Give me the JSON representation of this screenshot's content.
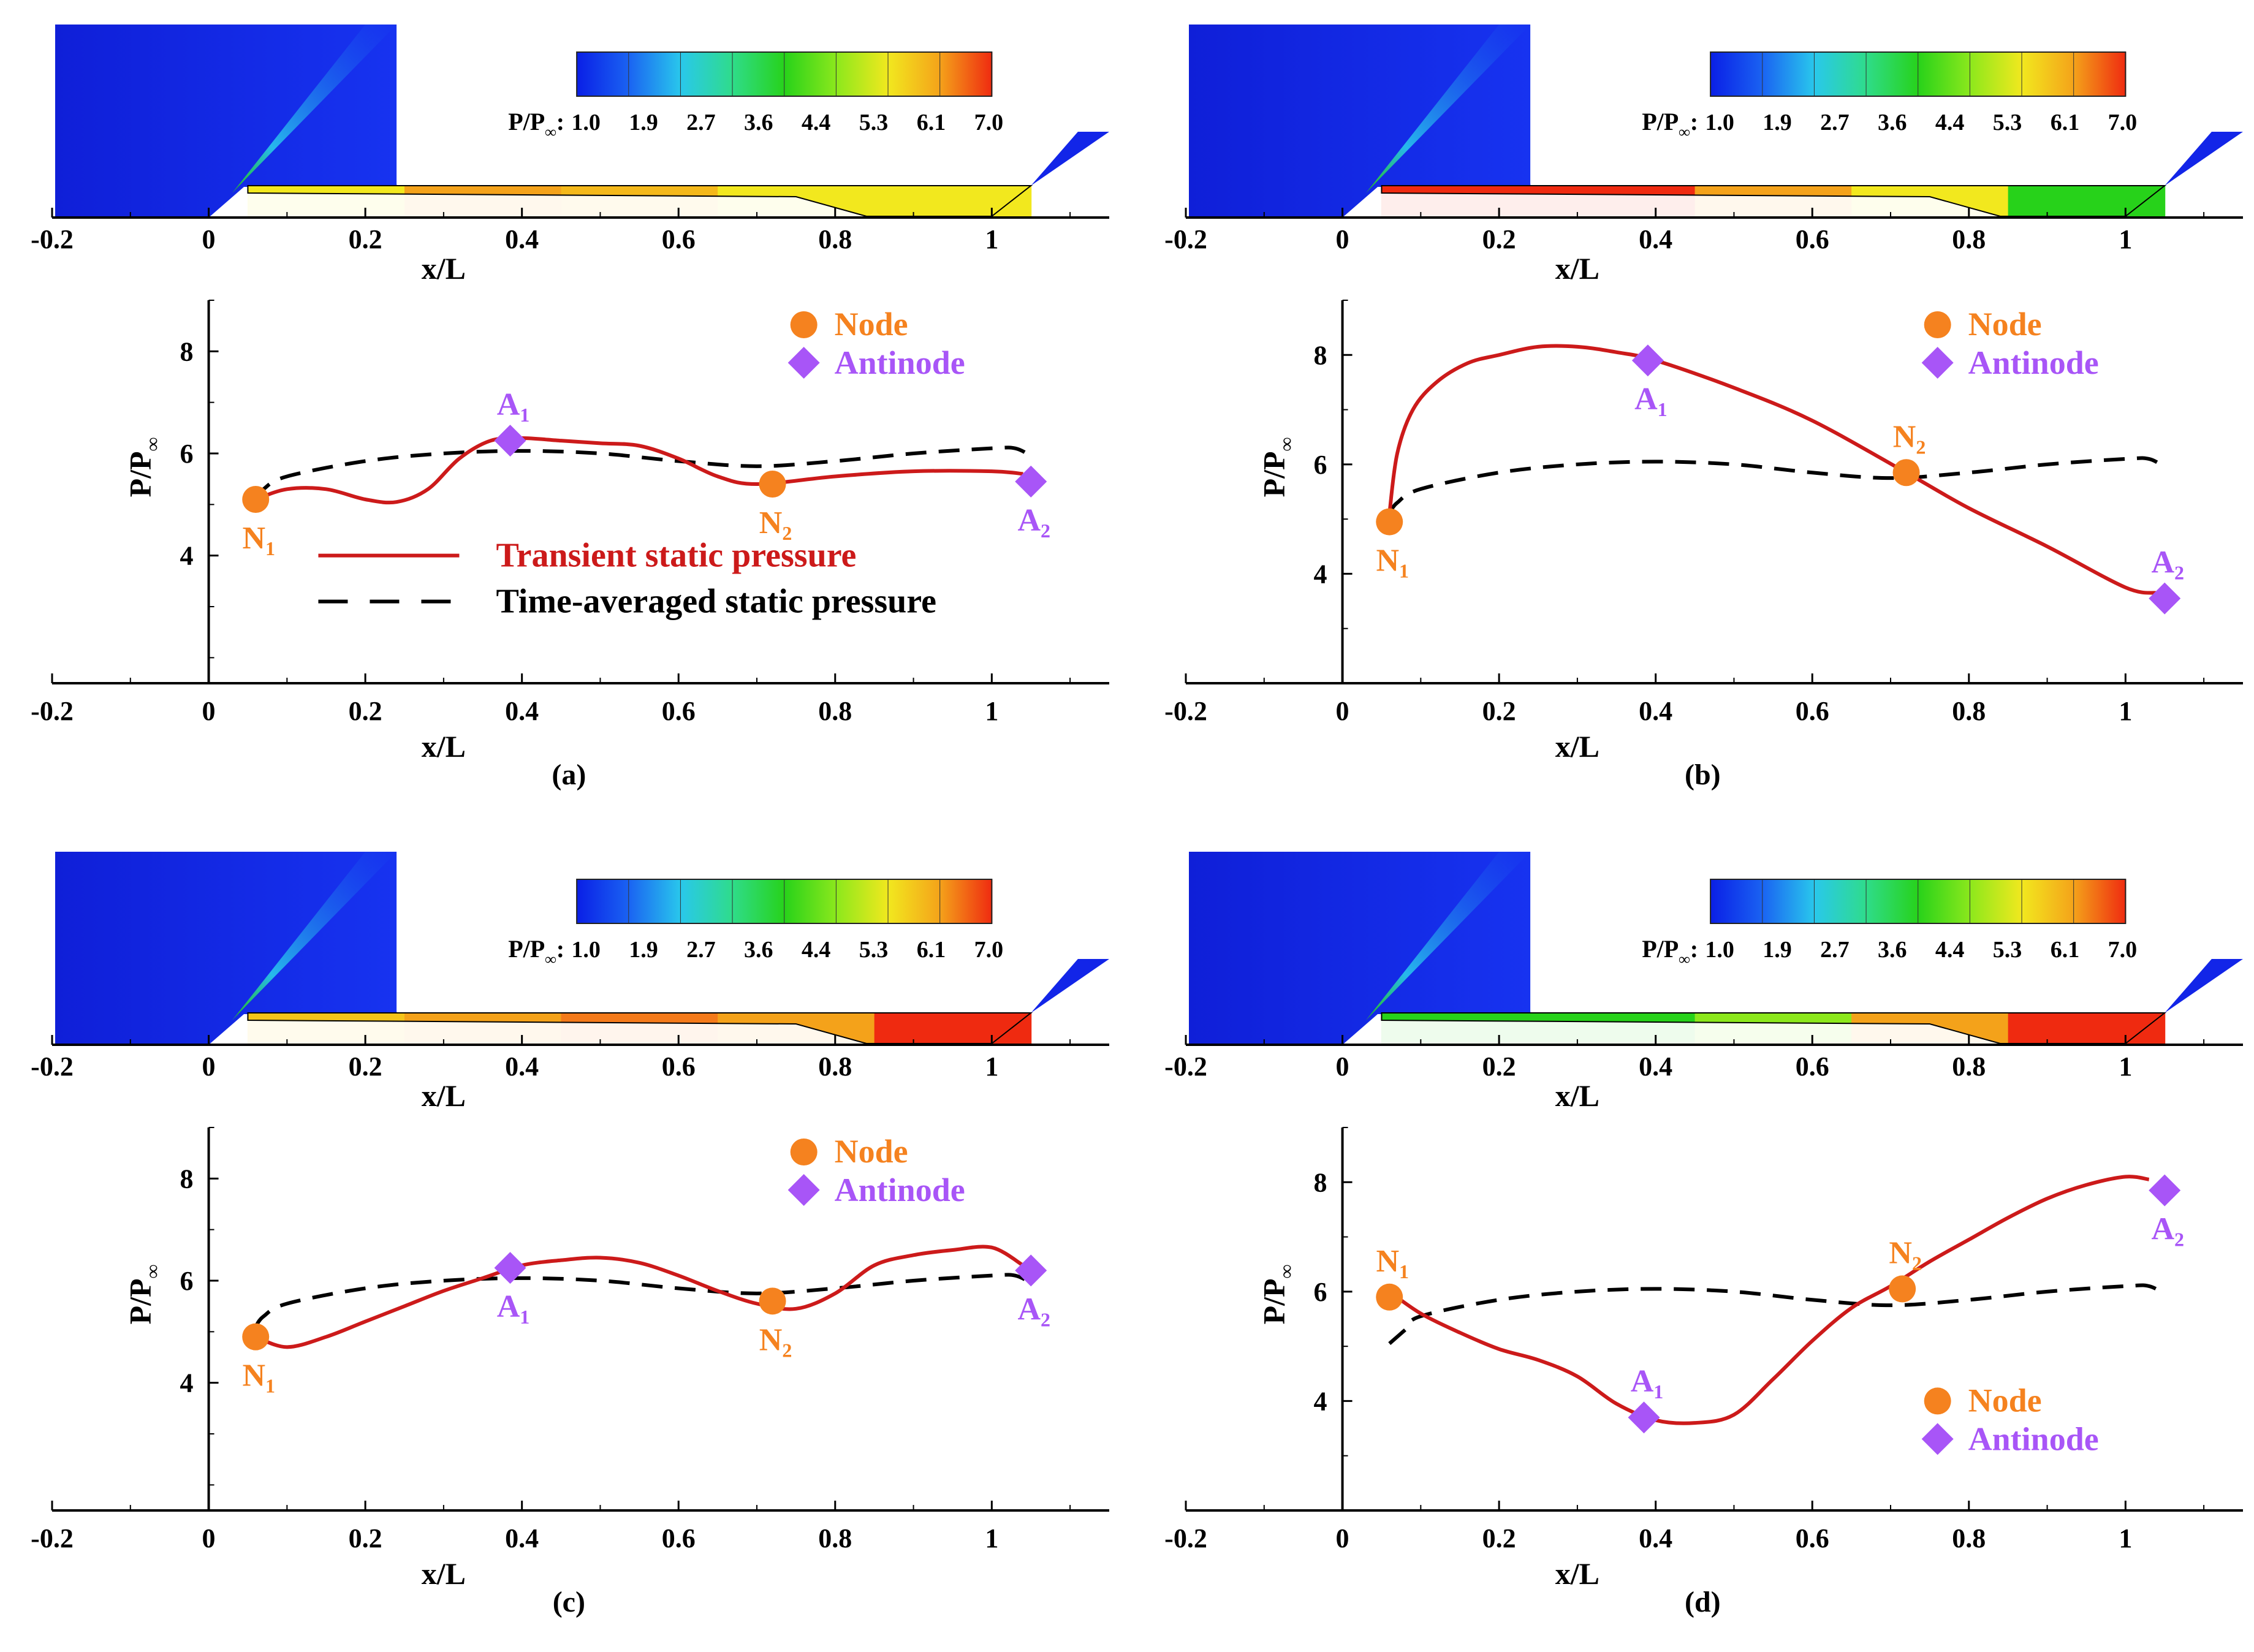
{
  "colorbar": {
    "label_main": "P/P",
    "label_sub": "∞",
    "label_colon": ":",
    "ticks": [
      "1.0",
      "1.9",
      "2.7",
      "3.6",
      "4.4",
      "5.3",
      "6.1",
      "7.0"
    ],
    "colors": [
      "#0a1fe6",
      "#1a63f2",
      "#29c8ec",
      "#2fdc8a",
      "#27d21a",
      "#8ce81c",
      "#f2e81e",
      "#f4a21a",
      "#ef2a10"
    ]
  },
  "colors": {
    "transient": "#cc1a1a",
    "time_averaged": "#000000",
    "node": "#f5821f",
    "antinode": "#a855f7",
    "contour_blue": "#1225e8"
  },
  "legend": {
    "node": "Node",
    "antinode": "Antinode",
    "transient": "Transient static pressure",
    "time_averaged": "Time-averaged static pressure"
  },
  "marker_labels": {
    "n1": {
      "main": "N",
      "sub": "1"
    },
    "n2": {
      "main": "N",
      "sub": "2"
    },
    "a1": {
      "main": "A",
      "sub": "1"
    },
    "a2": {
      "main": "A",
      "sub": "2"
    }
  },
  "chart_data": [
    {
      "panel": "(a)",
      "type": "line",
      "xlabel": "x/L",
      "ylabel": "P/P∞",
      "xlim": [
        -0.2,
        1.15
      ],
      "ylim": [
        1.5,
        9
      ],
      "xticks": [
        "-0.2",
        "0",
        "0.2",
        "0.4",
        "0.6",
        "0.8",
        "1"
      ],
      "yticks": [
        "4",
        "6",
        "8"
      ],
      "channel_colors": [
        "#f2e81e",
        "#f4a21a",
        "#f4b81a",
        "#f2e81e",
        "#f2e81e"
      ],
      "series": [
        {
          "name": "Transient static pressure",
          "x": [
            0.06,
            0.1,
            0.15,
            0.2,
            0.24,
            0.28,
            0.32,
            0.36,
            0.4,
            0.45,
            0.5,
            0.55,
            0.6,
            0.65,
            0.7,
            0.8,
            0.9,
            1.0,
            1.04
          ],
          "y": [
            5.1,
            5.3,
            5.3,
            5.1,
            5.05,
            5.3,
            5.9,
            6.25,
            6.3,
            6.25,
            6.2,
            6.15,
            5.9,
            5.55,
            5.4,
            5.55,
            5.65,
            5.65,
            5.6
          ]
        },
        {
          "name": "Time-averaged static pressure",
          "x": [
            0.06,
            0.07,
            0.1,
            0.2,
            0.3,
            0.4,
            0.5,
            0.6,
            0.7,
            0.8,
            0.9,
            1.0,
            1.03,
            1.05
          ],
          "y": [
            5.1,
            5.3,
            5.55,
            5.85,
            6.0,
            6.05,
            6.0,
            5.85,
            5.75,
            5.85,
            6.0,
            6.1,
            6.1,
            5.95
          ]
        }
      ],
      "markers": [
        {
          "id": "n1",
          "kind": "node",
          "x": 0.06,
          "y": 5.1,
          "label_pos": "below"
        },
        {
          "id": "a1",
          "kind": "antinode",
          "x": 0.385,
          "y": 6.25,
          "label_pos": "above"
        },
        {
          "id": "n2",
          "kind": "node",
          "x": 0.72,
          "y": 5.4,
          "label_pos": "below"
        },
        {
          "id": "a2",
          "kind": "antinode",
          "x": 1.05,
          "y": 5.45,
          "label_pos": "below"
        }
      ],
      "legend_placement": "top-center",
      "line_legend": true
    },
    {
      "panel": "(b)",
      "type": "line",
      "xlabel": "x/L",
      "ylabel": "P/P∞",
      "xlim": [
        -0.2,
        1.15
      ],
      "ylim": [
        2,
        9
      ],
      "xticks": [
        "-0.2",
        "0",
        "0.2",
        "0.4",
        "0.6",
        "0.8",
        "1"
      ],
      "yticks": [
        "4",
        "6",
        "8"
      ],
      "channel_colors": [
        "#ef2a10",
        "#ef2a10",
        "#f4a21a",
        "#f2e81e",
        "#27d21a"
      ],
      "series": [
        {
          "name": "Transient static pressure",
          "x": [
            0.06,
            0.07,
            0.09,
            0.12,
            0.16,
            0.2,
            0.25,
            0.3,
            0.35,
            0.4,
            0.5,
            0.6,
            0.72,
            0.8,
            0.9,
            1.0,
            1.04
          ],
          "y": [
            5.1,
            6.2,
            7.0,
            7.5,
            7.85,
            8.0,
            8.15,
            8.15,
            8.05,
            7.9,
            7.4,
            6.8,
            5.85,
            5.2,
            4.5,
            3.75,
            3.65
          ]
        },
        {
          "name": "Time-averaged static pressure",
          "x": [
            0.06,
            0.07,
            0.1,
            0.2,
            0.3,
            0.4,
            0.5,
            0.6,
            0.7,
            0.8,
            0.9,
            1.0,
            1.03,
            1.05
          ],
          "y": [
            5.1,
            5.3,
            5.55,
            5.85,
            6.0,
            6.05,
            6.0,
            5.85,
            5.75,
            5.85,
            6.0,
            6.1,
            6.1,
            5.95
          ]
        }
      ],
      "markers": [
        {
          "id": "n1",
          "kind": "node",
          "x": 0.06,
          "y": 4.95,
          "label_pos": "below"
        },
        {
          "id": "a1",
          "kind": "antinode",
          "x": 0.39,
          "y": 7.9,
          "label_pos": "below"
        },
        {
          "id": "n2",
          "kind": "node",
          "x": 0.72,
          "y": 5.85,
          "label_pos": "above"
        },
        {
          "id": "a2",
          "kind": "antinode",
          "x": 1.05,
          "y": 3.55,
          "label_pos": "above"
        }
      ],
      "legend_placement": "top-center",
      "line_legend": false
    },
    {
      "panel": "(c)",
      "type": "line",
      "xlabel": "x/L",
      "ylabel": "P/P∞",
      "xlim": [
        -0.2,
        1.15
      ],
      "ylim": [
        1.5,
        9
      ],
      "xticks": [
        "-0.2",
        "0",
        "0.2",
        "0.4",
        "0.6",
        "0.8",
        "1"
      ],
      "yticks": [
        "4",
        "6",
        "8"
      ],
      "channel_colors": [
        "#f4c41a",
        "#f4a21a",
        "#f47a1a",
        "#f4a21a",
        "#ef2a10"
      ],
      "series": [
        {
          "name": "Transient static pressure",
          "x": [
            0.06,
            0.1,
            0.15,
            0.2,
            0.25,
            0.3,
            0.35,
            0.4,
            0.45,
            0.5,
            0.55,
            0.6,
            0.65,
            0.7,
            0.75,
            0.8,
            0.85,
            0.9,
            0.95,
            1.0,
            1.04
          ],
          "y": [
            4.9,
            4.7,
            4.9,
            5.2,
            5.5,
            5.8,
            6.05,
            6.3,
            6.4,
            6.45,
            6.35,
            6.1,
            5.8,
            5.55,
            5.45,
            5.75,
            6.3,
            6.5,
            6.6,
            6.65,
            6.3
          ]
        },
        {
          "name": "Time-averaged static pressure",
          "x": [
            0.06,
            0.07,
            0.1,
            0.2,
            0.3,
            0.4,
            0.5,
            0.6,
            0.7,
            0.8,
            0.9,
            1.0,
            1.03,
            1.05
          ],
          "y": [
            5.1,
            5.3,
            5.55,
            5.85,
            6.0,
            6.05,
            6.0,
            5.85,
            5.75,
            5.85,
            6.0,
            6.1,
            6.1,
            5.95
          ]
        }
      ],
      "markers": [
        {
          "id": "n1",
          "kind": "node",
          "x": 0.06,
          "y": 4.9,
          "label_pos": "below"
        },
        {
          "id": "a1",
          "kind": "antinode",
          "x": 0.385,
          "y": 6.25,
          "label_pos": "below"
        },
        {
          "id": "n2",
          "kind": "node",
          "x": 0.72,
          "y": 5.6,
          "label_pos": "below"
        },
        {
          "id": "a2",
          "kind": "antinode",
          "x": 1.05,
          "y": 6.2,
          "label_pos": "below"
        }
      ],
      "legend_placement": "top-center",
      "line_legend": false
    },
    {
      "panel": "(d)",
      "type": "line",
      "xlabel": "x/L",
      "ylabel": "P/P∞",
      "xlim": [
        -0.2,
        1.15
      ],
      "ylim": [
        2,
        9
      ],
      "xticks": [
        "-0.2",
        "0",
        "0.2",
        "0.4",
        "0.6",
        "0.8",
        "1"
      ],
      "yticks": [
        "4",
        "6",
        "8"
      ],
      "channel_colors": [
        "#27d21a",
        "#27d21a",
        "#8ce81c",
        "#f4a21a",
        "#ef2a10"
      ],
      "series": [
        {
          "name": "Transient static pressure",
          "x": [
            0.06,
            0.1,
            0.15,
            0.2,
            0.25,
            0.3,
            0.35,
            0.4,
            0.45,
            0.5,
            0.55,
            0.6,
            0.65,
            0.7,
            0.75,
            0.8,
            0.85,
            0.9,
            0.95,
            1.0,
            1.03
          ],
          "y": [
            6.0,
            5.6,
            5.25,
            4.95,
            4.75,
            4.45,
            3.95,
            3.65,
            3.6,
            3.75,
            4.4,
            5.1,
            5.7,
            6.1,
            6.55,
            6.95,
            7.35,
            7.7,
            7.95,
            8.1,
            8.05
          ]
        },
        {
          "name": "Time-averaged static pressure",
          "x": [
            0.06,
            0.08,
            0.1,
            0.2,
            0.3,
            0.4,
            0.5,
            0.6,
            0.7,
            0.8,
            0.9,
            1.0,
            1.03,
            1.05
          ],
          "y": [
            5.05,
            5.3,
            5.55,
            5.85,
            6.0,
            6.05,
            6.0,
            5.85,
            5.75,
            5.85,
            6.0,
            6.1,
            6.1,
            5.95
          ]
        }
      ],
      "markers": [
        {
          "id": "n1",
          "kind": "node",
          "x": 0.06,
          "y": 5.9,
          "label_pos": "above"
        },
        {
          "id": "a1",
          "kind": "antinode",
          "x": 0.385,
          "y": 3.7,
          "label_pos": "above"
        },
        {
          "id": "n2",
          "kind": "node",
          "x": 0.715,
          "y": 6.05,
          "label_pos": "above"
        },
        {
          "id": "a2",
          "kind": "antinode",
          "x": 1.05,
          "y": 7.85,
          "label_pos": "below"
        }
      ],
      "legend_placement": "bottom-right",
      "line_legend": false
    }
  ]
}
